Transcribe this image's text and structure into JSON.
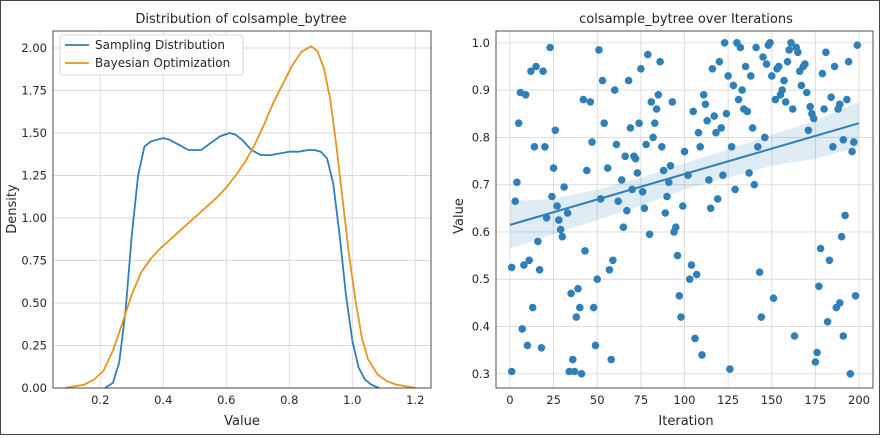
{
  "chart_data": [
    {
      "type": "line",
      "title": "Distribution of colsample_bytree",
      "xlabel": "Value",
      "ylabel": "Density",
      "xlim": [
        0.05,
        1.25
      ],
      "ylim": [
        0,
        2.1
      ],
      "xticks": [
        0.2,
        0.4,
        0.6,
        0.8,
        1.0,
        1.2
      ],
      "xtick_labels": [
        "0.2",
        "0.4",
        "0.6",
        "0.8",
        "1.0",
        "1.2"
      ],
      "yticks": [
        0,
        0.25,
        0.5,
        0.75,
        1.0,
        1.25,
        1.5,
        1.75,
        2.0
      ],
      "ytick_labels": [
        "0.00",
        "0.25",
        "0.50",
        "0.75",
        "1.00",
        "1.25",
        "1.50",
        "1.75",
        "2.00"
      ],
      "grid": true,
      "legend_position": "top-left",
      "series": [
        {
          "name": "Sampling Distribution",
          "color": "#2f7fb8",
          "x": [
            0.215,
            0.24,
            0.26,
            0.28,
            0.3,
            0.32,
            0.34,
            0.36,
            0.38,
            0.4,
            0.42,
            0.44,
            0.46,
            0.48,
            0.5,
            0.52,
            0.55,
            0.58,
            0.61,
            0.63,
            0.65,
            0.68,
            0.71,
            0.74,
            0.77,
            0.8,
            0.83,
            0.86,
            0.88,
            0.9,
            0.92,
            0.94,
            0.96,
            0.98,
            1.0,
            1.02,
            1.04,
            1.06,
            1.085
          ],
          "y": [
            0.0,
            0.03,
            0.15,
            0.45,
            0.9,
            1.25,
            1.42,
            1.45,
            1.46,
            1.47,
            1.46,
            1.44,
            1.42,
            1.4,
            1.4,
            1.4,
            1.44,
            1.48,
            1.5,
            1.49,
            1.46,
            1.4,
            1.37,
            1.37,
            1.38,
            1.39,
            1.39,
            1.4,
            1.4,
            1.39,
            1.35,
            1.2,
            0.9,
            0.55,
            0.28,
            0.12,
            0.05,
            0.02,
            0.0
          ]
        },
        {
          "name": "Bayesian Optimization",
          "color": "#e69520",
          "x": [
            0.09,
            0.12,
            0.15,
            0.18,
            0.21,
            0.24,
            0.27,
            0.3,
            0.33,
            0.36,
            0.39,
            0.42,
            0.45,
            0.48,
            0.51,
            0.54,
            0.57,
            0.6,
            0.63,
            0.66,
            0.69,
            0.72,
            0.75,
            0.78,
            0.81,
            0.84,
            0.87,
            0.89,
            0.91,
            0.93,
            0.95,
            0.97,
            0.99,
            1.01,
            1.03,
            1.05,
            1.08,
            1.11,
            1.14,
            1.17,
            1.2
          ],
          "y": [
            0.0,
            0.01,
            0.02,
            0.05,
            0.1,
            0.22,
            0.38,
            0.55,
            0.68,
            0.76,
            0.82,
            0.87,
            0.92,
            0.97,
            1.02,
            1.07,
            1.12,
            1.18,
            1.25,
            1.33,
            1.43,
            1.55,
            1.68,
            1.79,
            1.9,
            1.98,
            2.01,
            1.98,
            1.88,
            1.7,
            1.42,
            1.1,
            0.78,
            0.52,
            0.3,
            0.17,
            0.08,
            0.04,
            0.02,
            0.01,
            0.0
          ]
        }
      ]
    },
    {
      "type": "scatter",
      "title": "colsample_bytree over Iterations",
      "xlabel": "Iteration",
      "ylabel": "Value",
      "xlim": [
        -8,
        208
      ],
      "ylim": [
        0.27,
        1.025
      ],
      "xticks": [
        0,
        25,
        50,
        75,
        100,
        125,
        150,
        175,
        200
      ],
      "xtick_labels": [
        "0",
        "25",
        "50",
        "75",
        "100",
        "125",
        "150",
        "175",
        "200"
      ],
      "yticks": [
        0.3,
        0.4,
        0.5,
        0.6,
        0.7,
        0.8,
        0.9,
        1.0
      ],
      "ytick_labels": [
        "0.3",
        "0.4",
        "0.5",
        "0.6",
        "0.7",
        "0.8",
        "0.9",
        "1.0"
      ],
      "grid": true,
      "color": "#2f7fb8",
      "regression": {
        "x": [
          0,
          200
        ],
        "y": [
          0.615,
          0.83
        ]
      },
      "confidence_band": {
        "x": [
          0,
          25,
          50,
          75,
          100,
          125,
          150,
          175,
          200
        ],
        "upper": [
          0.665,
          0.67,
          0.69,
          0.715,
          0.745,
          0.775,
          0.805,
          0.835,
          0.875
        ],
        "lower": [
          0.565,
          0.595,
          0.625,
          0.655,
          0.69,
          0.715,
          0.74,
          0.755,
          0.78
        ]
      },
      "points": [
        [
          1,
          0.305
        ],
        [
          1,
          0.525
        ],
        [
          3,
          0.665
        ],
        [
          4,
          0.705
        ],
        [
          5,
          0.83
        ],
        [
          6,
          0.895
        ],
        [
          7,
          0.395
        ],
        [
          8,
          0.53
        ],
        [
          9,
          0.89
        ],
        [
          10,
          0.36
        ],
        [
          11,
          0.54
        ],
        [
          12,
          0.94
        ],
        [
          13,
          0.44
        ],
        [
          14,
          0.78
        ],
        [
          15,
          0.95
        ],
        [
          16,
          0.58
        ],
        [
          17,
          0.52
        ],
        [
          18,
          0.355
        ],
        [
          19,
          0.94
        ],
        [
          20,
          0.78
        ],
        [
          21,
          0.63
        ],
        [
          23,
          0.99
        ],
        [
          24,
          0.675
        ],
        [
          25,
          0.735
        ],
        [
          26,
          0.815
        ],
        [
          27,
          0.655
        ],
        [
          28,
          0.625
        ],
        [
          29,
          0.605
        ],
        [
          30,
          0.59
        ],
        [
          31,
          0.695
        ],
        [
          33,
          0.64
        ],
        [
          34,
          0.305
        ],
        [
          35,
          0.47
        ],
        [
          36,
          0.33
        ],
        [
          37,
          0.305
        ],
        [
          38,
          0.42
        ],
        [
          39,
          0.48
        ],
        [
          40,
          0.44
        ],
        [
          41,
          0.3
        ],
        [
          42,
          0.88
        ],
        [
          43,
          0.56
        ],
        [
          44,
          0.73
        ],
        [
          46,
          0.875
        ],
        [
          47,
          0.79
        ],
        [
          48,
          0.44
        ],
        [
          49,
          0.36
        ],
        [
          50,
          0.5
        ],
        [
          51,
          0.985
        ],
        [
          52,
          0.67
        ],
        [
          53,
          0.92
        ],
        [
          54,
          0.83
        ],
        [
          56,
          0.735
        ],
        [
          57,
          0.52
        ],
        [
          58,
          0.33
        ],
        [
          59,
          0.54
        ],
        [
          60,
          0.9
        ],
        [
          61,
          0.785
        ],
        [
          62,
          0.665
        ],
        [
          64,
          0.71
        ],
        [
          65,
          0.61
        ],
        [
          66,
          0.76
        ],
        [
          67,
          0.645
        ],
        [
          68,
          0.92
        ],
        [
          69,
          0.82
        ],
        [
          70,
          0.69
        ],
        [
          71,
          0.76
        ],
        [
          72,
          0.755
        ],
        [
          73,
          0.725
        ],
        [
          74,
          0.83
        ],
        [
          75,
          0.945
        ],
        [
          76,
          0.685
        ],
        [
          77,
          0.65
        ],
        [
          78,
          0.785
        ],
        [
          79,
          0.975
        ],
        [
          80,
          0.595
        ],
        [
          81,
          0.875
        ],
        [
          82,
          0.8
        ],
        [
          83,
          0.83
        ],
        [
          84,
          0.86
        ],
        [
          85,
          0.89
        ],
        [
          86,
          0.96
        ],
        [
          87,
          0.78
        ],
        [
          88,
          0.73
        ],
        [
          89,
          0.64
        ],
        [
          90,
          0.675
        ],
        [
          91,
          0.705
        ],
        [
          92,
          0.74
        ],
        [
          93,
          0.875
        ],
        [
          94,
          0.6
        ],
        [
          95,
          0.61
        ],
        [
          96,
          0.55
        ],
        [
          97,
          0.465
        ],
        [
          98,
          0.42
        ],
        [
          99,
          0.655
        ],
        [
          100,
          0.77
        ],
        [
          102,
          0.72
        ],
        [
          103,
          0.5
        ],
        [
          104,
          0.53
        ],
        [
          105,
          0.855
        ],
        [
          106,
          0.375
        ],
        [
          107,
          0.51
        ],
        [
          108,
          0.81
        ],
        [
          109,
          0.78
        ],
        [
          110,
          0.34
        ],
        [
          111,
          0.89
        ],
        [
          112,
          0.87
        ],
        [
          113,
          0.835
        ],
        [
          114,
          0.71
        ],
        [
          115,
          0.65
        ],
        [
          116,
          0.945
        ],
        [
          117,
          0.845
        ],
        [
          118,
          0.81
        ],
        [
          119,
          0.67
        ],
        [
          120,
          0.96
        ],
        [
          121,
          0.82
        ],
        [
          122,
          0.72
        ],
        [
          123,
          1.0
        ],
        [
          124,
          0.85
        ],
        [
          125,
          0.93
        ],
        [
          126,
          0.31
        ],
        [
          127,
          0.78
        ],
        [
          128,
          0.91
        ],
        [
          129,
          0.69
        ],
        [
          130,
          1.0
        ],
        [
          131,
          0.88
        ],
        [
          132,
          0.99
        ],
        [
          133,
          0.9
        ],
        [
          134,
          0.86
        ],
        [
          135,
          0.95
        ],
        [
          136,
          0.855
        ],
        [
          137,
          0.725
        ],
        [
          138,
          0.93
        ],
        [
          139,
          0.82
        ],
        [
          140,
          0.7
        ],
        [
          141,
          0.99
        ],
        [
          142,
          0.78
        ],
        [
          143,
          0.515
        ],
        [
          144,
          0.42
        ],
        [
          145,
          0.97
        ],
        [
          146,
          0.8
        ],
        [
          147,
          0.955
        ],
        [
          148,
          0.995
        ],
        [
          149,
          1.0
        ],
        [
          150,
          0.93
        ],
        [
          151,
          0.46
        ],
        [
          152,
          0.88
        ],
        [
          153,
          0.945
        ],
        [
          154,
          0.95
        ],
        [
          155,
          0.89
        ],
        [
          156,
          0.9
        ],
        [
          157,
          0.92
        ],
        [
          158,
          0.875
        ],
        [
          159,
          0.96
        ],
        [
          160,
          0.985
        ],
        [
          161,
          1.0
        ],
        [
          162,
          0.86
        ],
        [
          163,
          0.38
        ],
        [
          164,
          0.99
        ],
        [
          165,
          0.98
        ],
        [
          166,
          0.94
        ],
        [
          167,
          0.91
        ],
        [
          168,
          0.95
        ],
        [
          169,
          0.955
        ],
        [
          170,
          0.895
        ],
        [
          171,
          0.815
        ],
        [
          172,
          0.865
        ],
        [
          173,
          0.85
        ],
        [
          174,
          0.84
        ],
        [
          175,
          0.325
        ],
        [
          176,
          0.345
        ],
        [
          177,
          0.485
        ],
        [
          178,
          0.565
        ],
        [
          179,
          0.935
        ],
        [
          180,
          0.86
        ],
        [
          181,
          0.98
        ],
        [
          182,
          0.41
        ],
        [
          183,
          0.54
        ],
        [
          184,
          0.885
        ],
        [
          185,
          0.78
        ],
        [
          186,
          0.95
        ],
        [
          187,
          0.44
        ],
        [
          188,
          0.86
        ],
        [
          189,
          0.87
        ],
        [
          190,
          0.59
        ],
        [
          191,
          0.795
        ],
        [
          192,
          0.635
        ],
        [
          193,
          0.88
        ],
        [
          194,
          0.96
        ],
        [
          195,
          0.3
        ],
        [
          196,
          0.77
        ],
        [
          197,
          0.79
        ],
        [
          198,
          0.465
        ],
        [
          199,
          0.995
        ],
        [
          189,
          0.45
        ],
        [
          191,
          0.38
        ]
      ]
    }
  ]
}
